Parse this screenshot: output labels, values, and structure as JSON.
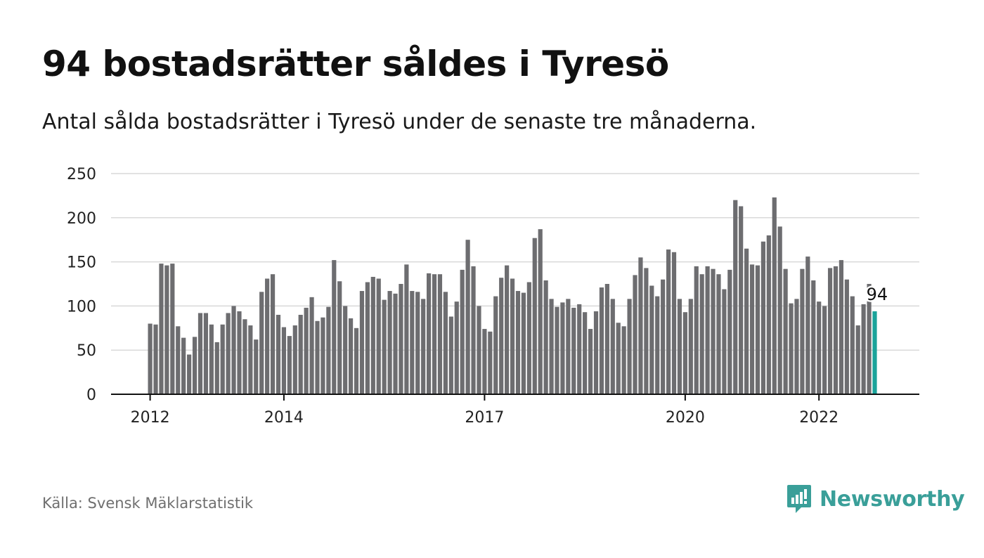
{
  "title": "94 bostadsrätter såldes i Tyresö",
  "subtitle": "Antal sålda bostadsrätter i Tyresö under de senaste tre månaderna.",
  "source": "Källa: Svensk Mäklarstatistik",
  "brand": {
    "name": "Newsworthy",
    "icon": "newsworthy-logo-icon"
  },
  "colors": {
    "bar": "#6d6d70",
    "highlight": "#1aa39a",
    "brand": "#3a9f99",
    "grid": "#d9d9d9",
    "axis": "#111111"
  },
  "chart_data": {
    "type": "bar",
    "title": "94 bostadsrätter såldes i Tyresö",
    "subtitle": "Antal sålda bostadsrätter i Tyresö under de senaste tre månaderna.",
    "xlabel": "",
    "ylabel": "",
    "ylim": [
      0,
      250
    ],
    "yticks": [
      0,
      50,
      100,
      150,
      200,
      250
    ],
    "xticks": [
      {
        "label": "2012",
        "index": 0
      },
      {
        "label": "2014",
        "index": 24
      },
      {
        "label": "2017",
        "index": 60
      },
      {
        "label": "2020",
        "index": 96
      },
      {
        "label": "2022",
        "index": 120
      }
    ],
    "grid": true,
    "legend": "none",
    "highlight": {
      "index": 130,
      "label": "94"
    },
    "values": [
      80,
      79,
      148,
      146,
      148,
      77,
      64,
      45,
      65,
      92,
      92,
      79,
      59,
      79,
      92,
      100,
      94,
      85,
      78,
      62,
      116,
      131,
      136,
      90,
      76,
      66,
      78,
      90,
      98,
      110,
      83,
      87,
      99,
      152,
      128,
      100,
      86,
      75,
      117,
      127,
      133,
      131,
      107,
      117,
      114,
      125,
      147,
      117,
      116,
      108,
      137,
      136,
      136,
      116,
      88,
      105,
      141,
      175,
      145,
      100,
      74,
      71,
      111,
      132,
      146,
      131,
      117,
      115,
      127,
      177,
      187,
      129,
      108,
      99,
      104,
      108,
      98,
      102,
      93,
      74,
      94,
      121,
      125,
      108,
      81,
      77,
      108,
      135,
      155,
      143,
      123,
      111,
      130,
      164,
      161,
      108,
      93,
      108,
      145,
      136,
      145,
      142,
      136,
      119,
      141,
      220,
      213,
      165,
      147,
      146,
      173,
      180,
      223,
      190,
      142,
      103,
      108,
      142,
      156,
      129,
      105,
      100,
      143,
      145,
      152,
      130,
      111,
      78,
      102,
      125,
      94
    ]
  }
}
